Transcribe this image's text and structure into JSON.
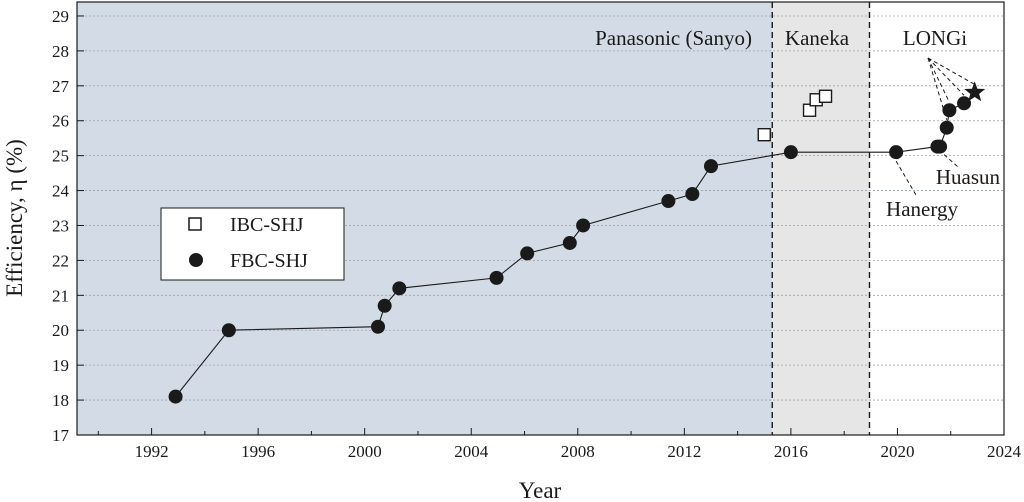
{
  "chart_data": {
    "type": "scatter",
    "xlabel": "Year",
    "ylabel": "Efficiency, η (%)",
    "xlim": [
      1989.2,
      2024
    ],
    "ylim": [
      17,
      29.4
    ],
    "x_ticks": [
      1992,
      1996,
      2000,
      2004,
      2008,
      2012,
      2016,
      2020,
      2024
    ],
    "y_ticks": [
      17,
      18,
      19,
      20,
      21,
      22,
      23,
      24,
      25,
      26,
      27,
      28,
      29
    ],
    "grid": true,
    "legend": {
      "position": "center-left",
      "entries": [
        "IBC-SHJ",
        "FBC-SHJ"
      ]
    },
    "regions": [
      {
        "label": "Panasonic (Sanyo)",
        "from": 1989.2,
        "to": 2015.3,
        "color": "#d3dce6"
      },
      {
        "label": "Kaneka",
        "from": 2015.3,
        "to": 2018.95,
        "color": "#e6e6e6"
      },
      {
        "label": "LONGi",
        "from": 2018.95,
        "to": 2024,
        "color": "#ffffff"
      }
    ],
    "region_dividers": [
      2015.3,
      2018.95
    ],
    "series": [
      {
        "name": "IBC-SHJ",
        "marker": "open-square",
        "points": [
          {
            "x": 2015.0,
            "y": 25.6
          },
          {
            "x": 2016.7,
            "y": 26.3
          },
          {
            "x": 2016.95,
            "y": 26.6
          },
          {
            "x": 2017.3,
            "y": 26.7
          }
        ]
      },
      {
        "name": "FBC-SHJ",
        "marker": "filled-circle",
        "connected": true,
        "points": [
          {
            "x": 1992.9,
            "y": 18.1
          },
          {
            "x": 1994.9,
            "y": 20.0
          },
          {
            "x": 2000.5,
            "y": 20.1
          },
          {
            "x": 2000.75,
            "y": 20.7
          },
          {
            "x": 2001.3,
            "y": 21.2
          },
          {
            "x": 2004.95,
            "y": 21.5
          },
          {
            "x": 2006.1,
            "y": 22.2
          },
          {
            "x": 2007.7,
            "y": 22.5
          },
          {
            "x": 2008.2,
            "y": 23.0
          },
          {
            "x": 2011.4,
            "y": 23.7
          },
          {
            "x": 2012.3,
            "y": 23.9
          },
          {
            "x": 2013.0,
            "y": 24.7
          },
          {
            "x": 2016.0,
            "y": 25.1
          },
          {
            "x": 2019.95,
            "y": 25.1
          },
          {
            "x": 2021.5,
            "y": 25.26
          },
          {
            "x": 2021.6,
            "y": 25.26
          },
          {
            "x": 2021.85,
            "y": 25.8
          },
          {
            "x": 2021.95,
            "y": 26.3
          },
          {
            "x": 2022.5,
            "y": 26.5
          }
        ]
      }
    ],
    "highlight": {
      "marker": "filled-star",
      "x": 2022.9,
      "y": 26.81
    },
    "annotations": [
      {
        "label": "Hanergy",
        "target": {
          "x": 2019.95,
          "y": 25.1
        }
      },
      {
        "label": "Huasun",
        "target": {
          "x": 2021.6,
          "y": 25.26
        }
      },
      {
        "label": "LONGi",
        "targets": [
          {
            "x": 2021.85,
            "y": 25.8
          },
          {
            "x": 2021.95,
            "y": 26.3
          },
          {
            "x": 2022.5,
            "y": 26.5
          },
          {
            "x": 2022.9,
            "y": 26.81
          }
        ]
      }
    ],
    "colors": {
      "marker": "#1a1a1a",
      "line": "#1a1a1a",
      "grid": "#9aa3ad"
    }
  }
}
